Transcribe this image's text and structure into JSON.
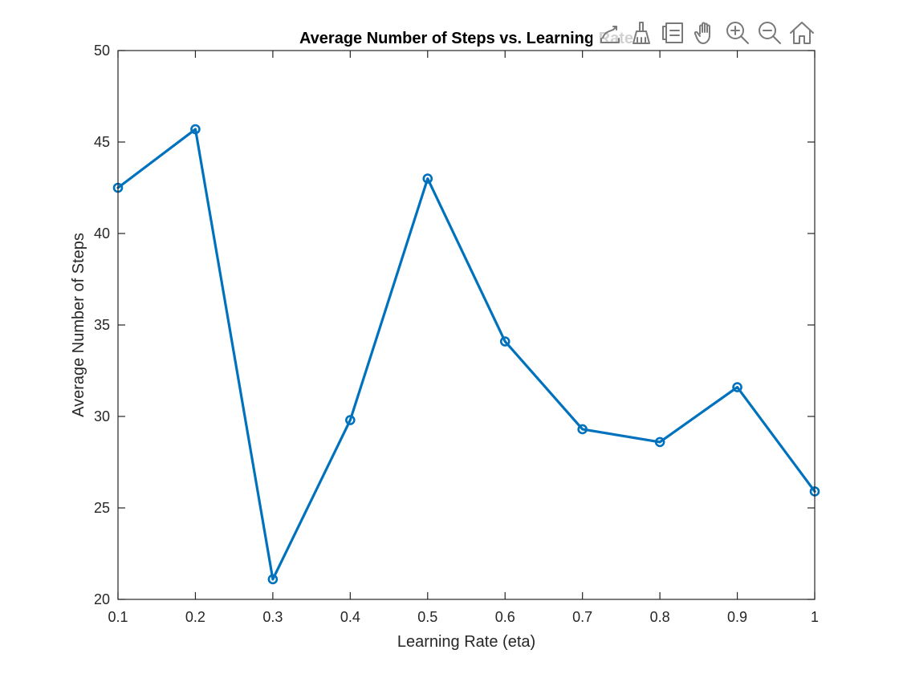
{
  "chart_data": {
    "type": "line",
    "title": "Average Number of Steps vs. Learning Rate",
    "xlabel": "Learning Rate (eta)",
    "ylabel": "Average Number of Steps",
    "x": [
      0.1,
      0.2,
      0.3,
      0.4,
      0.5,
      0.6,
      0.7,
      0.8,
      0.9,
      1.0
    ],
    "series": [
      {
        "values": [
          42.5,
          45.7,
          21.1,
          29.8,
          43.0,
          34.1,
          29.3,
          28.6,
          31.6,
          25.9
        ],
        "color": "#0072BD",
        "marker": "o"
      }
    ],
    "xlim": [
      0.1,
      1.0
    ],
    "ylim": [
      20,
      50
    ],
    "xticks": [
      "0.1",
      "0.2",
      "0.3",
      "0.4",
      "0.5",
      "0.6",
      "0.7",
      "0.8",
      "0.9",
      "1"
    ],
    "yticks": [
      "20",
      "25",
      "30",
      "35",
      "40",
      "45",
      "50"
    ],
    "grid": false,
    "legend": "none"
  },
  "toolbar": {
    "items": [
      {
        "icon": "brush-edit-icon"
      },
      {
        "icon": "data-brush-icon"
      },
      {
        "icon": "legend-icon"
      },
      {
        "icon": "pan-hand-icon"
      },
      {
        "icon": "zoom-in-icon"
      },
      {
        "icon": "zoom-out-icon"
      },
      {
        "icon": "home-icon"
      }
    ]
  }
}
